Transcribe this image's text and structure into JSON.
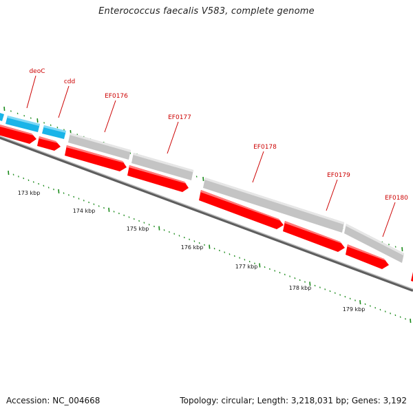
{
  "title": "Enterococcus faecalis V583, complete genome",
  "footer": {
    "accession": "Accession: NC_004668",
    "topology": "Topology: circular; Length: 3,218,031 bp; Genes: 3,192"
  },
  "gene_labels": [
    "deoC",
    "cdd",
    "EF0176",
    "EF0177",
    "EF0178",
    "EF0179",
    "EF0180"
  ],
  "kbp_labels": [
    "173 kbp",
    "174 kbp",
    "175 kbp",
    "176 kbp",
    "177 kbp",
    "178 kbp",
    "179 kbp"
  ],
  "colors": {
    "forward_gene": "#ff0000",
    "reverse_gene_blue": "#1ab4e8",
    "reverse_gene_gray": "#c4c4c4",
    "backbone": "#888888",
    "tick": "#1a8a1a",
    "label": "#cc0000"
  }
}
